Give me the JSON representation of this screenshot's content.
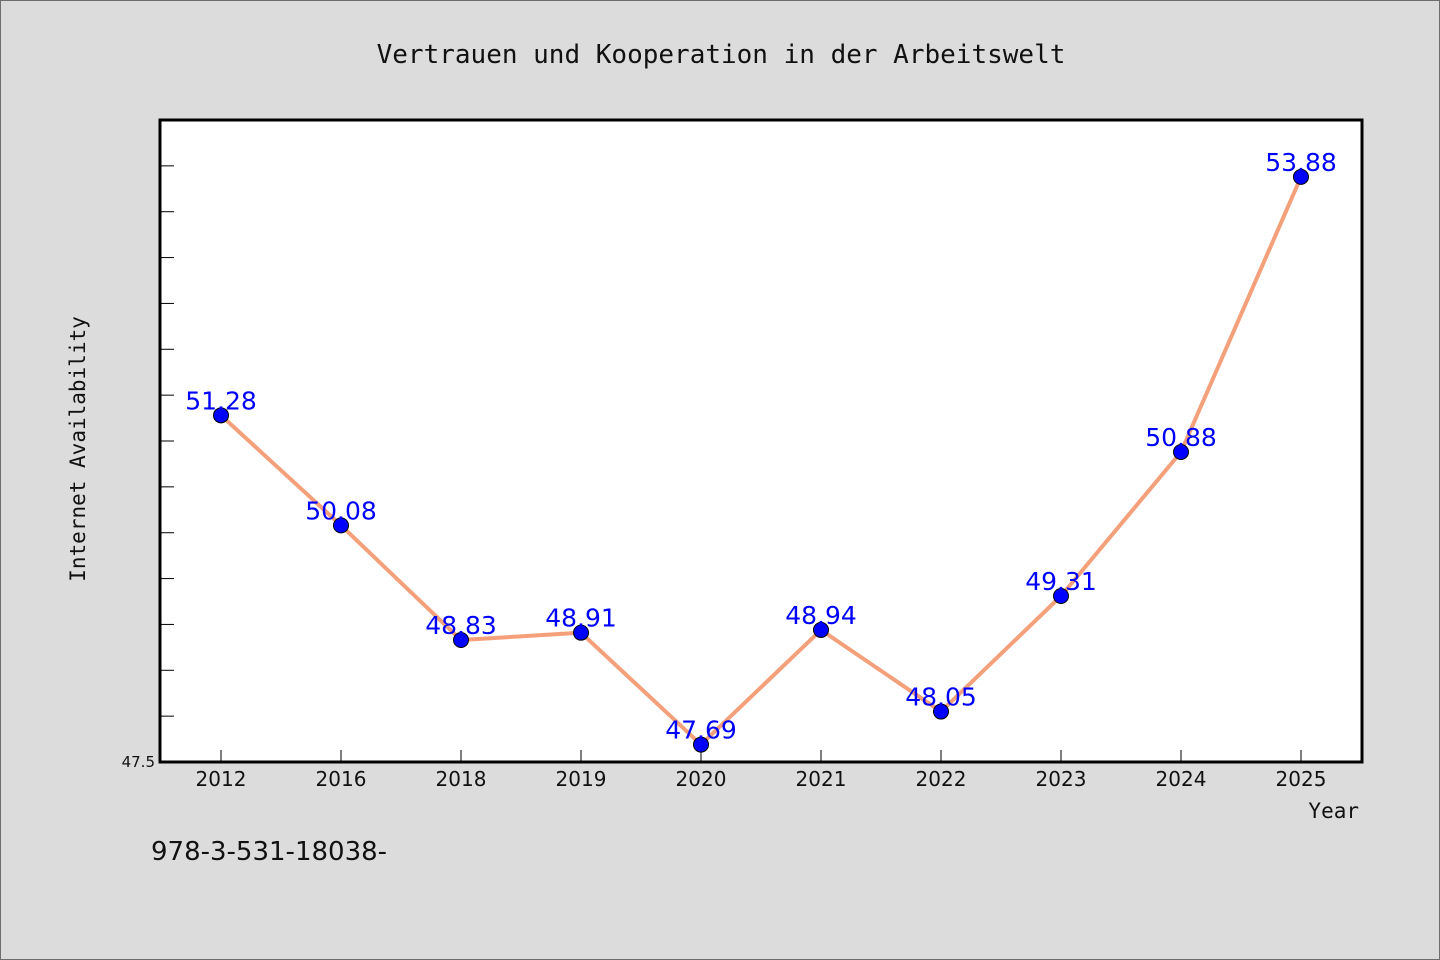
{
  "footer": {
    "code": "978-3-531-18038-"
  },
  "chart_data": {
    "type": "line",
    "title": "Vertrauen und Kooperation in der Arbeitswelt",
    "xlabel": "Year",
    "ylabel": "Internet Availability",
    "categories": [
      "2012",
      "2016",
      "2018",
      "2019",
      "2020",
      "2021",
      "2022",
      "2023",
      "2024",
      "2025"
    ],
    "series": [
      {
        "values": [
          51.28,
          50.08,
          48.83,
          48.91,
          47.69,
          48.94,
          48.05,
          49.31,
          50.88,
          53.88
        ],
        "data_labels": [
          "51.28",
          "50.08",
          "48.83",
          "48.91",
          "47.69",
          "48.94",
          "48.05",
          "49.31",
          "50.88",
          "53.88"
        ]
      }
    ],
    "ylim": [
      47.5,
      54.5
    ],
    "ytick_labels": [
      "47.5"
    ],
    "grid": false,
    "colors": {
      "line": "#f4a07a",
      "marker": "#0000ff",
      "label": "#0000ff",
      "background": "#dcdcdc",
      "plot_background": "#ffffff"
    }
  }
}
